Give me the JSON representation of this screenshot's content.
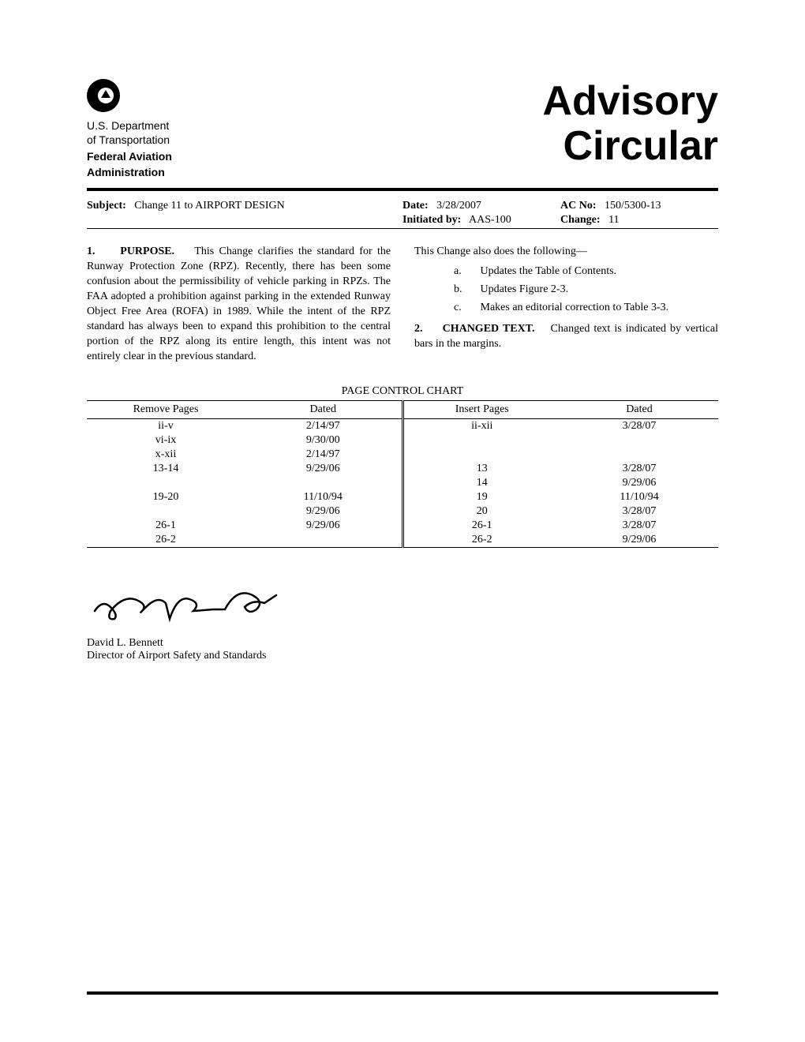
{
  "logo": {
    "dept1": "U.S. Department",
    "dept2": "of Transportation",
    "faa1": "Federal Aviation",
    "faa2": "Administration"
  },
  "title": {
    "line1": "Advisory",
    "line2": "Circular"
  },
  "meta": {
    "subject_label": "Subject:",
    "subject": "Change 11 to AIRPORT DESIGN",
    "date_label": "Date:",
    "date": "3/28/2007",
    "ac_no_label": "AC No:",
    "ac_no": "150/5300-13",
    "initiated_label": "Initiated by:",
    "initiated": "AAS-100",
    "change_label": "Change:",
    "change": "11"
  },
  "purpose": {
    "num": "1.",
    "heading": "PURPOSE.",
    "text": "This Change clarifies the standard for the Runway Protection Zone (RPZ).  Recently, there has been some confusion about the permissibility of vehicle parking in RPZs.  The FAA adopted a prohibition against parking in the extended Runway Object Free Area (ROFA) in 1989.  While the intent of the RPZ standard has always been to expand this prohibition to the central portion of the RPZ along its entire length, this intent was not entirely clear in the previous standard."
  },
  "also": {
    "intro": "This Change also does the following—",
    "items": [
      {
        "letter": "a.",
        "text": "Updates the Table of Contents."
      },
      {
        "letter": "b.",
        "text": "Updates Figure 2-3."
      },
      {
        "letter": "c.",
        "text": "Makes an editorial correction to Table 3-3."
      }
    ]
  },
  "changed_text": {
    "num": "2.",
    "heading": "CHANGED TEXT.",
    "text": "Changed text is indicated by vertical bars in the margins."
  },
  "table": {
    "title": "PAGE CONTROL CHART",
    "headers": [
      "Remove Pages",
      "Dated",
      "Insert Pages",
      "Dated"
    ],
    "rows": [
      [
        "ii-v",
        "2/14/97",
        "ii-xii",
        "3/28/07"
      ],
      [
        "vi-ix",
        "9/30/00",
        "",
        ""
      ],
      [
        "x-xii",
        "2/14/97",
        "",
        ""
      ],
      [
        "13-14",
        "9/29/06",
        "13",
        "3/28/07"
      ],
      [
        "",
        "",
        "14",
        "9/29/06"
      ],
      [
        "19-20",
        "11/10/94",
        "19",
        "11/10/94"
      ],
      [
        "",
        "9/29/06",
        "20",
        "3/28/07"
      ],
      [
        "26-1",
        "9/29/06",
        "26-1",
        "3/28/07"
      ],
      [
        "26-2",
        "",
        "26-2",
        "9/29/06"
      ]
    ]
  },
  "signature": {
    "name": "David L. Bennett",
    "title": "Director of Airport Safety and Standards"
  }
}
